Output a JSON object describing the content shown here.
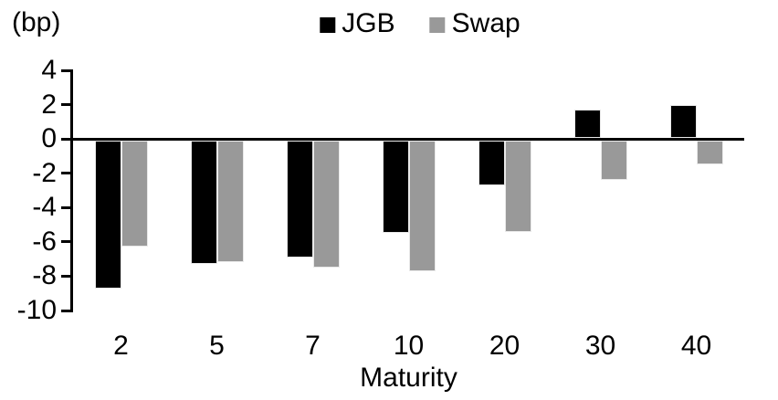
{
  "chart_data": {
    "type": "bar",
    "title": "",
    "unit_label": "(bp)",
    "xlabel": "Maturity",
    "ylabel": "",
    "categories": [
      "2",
      "5",
      "7",
      "10",
      "20",
      "30",
      "40"
    ],
    "series": [
      {
        "name": "JGB",
        "color": "#000000",
        "values": [
          -8.7,
          -7.3,
          -6.9,
          -5.5,
          -2.7,
          1.7,
          2.0
        ]
      },
      {
        "name": "Swap",
        "color": "#999999",
        "values": [
          -6.3,
          -7.2,
          -7.5,
          -7.7,
          -5.4,
          -2.4,
          -1.5
        ]
      }
    ],
    "ylim": [
      -10,
      4
    ],
    "yticks": [
      4,
      2,
      0,
      -2,
      -4,
      -6,
      -8,
      -10
    ],
    "grid": false,
    "legend_position": "top-center",
    "bar_outline_color": "#e9e9e9"
  }
}
